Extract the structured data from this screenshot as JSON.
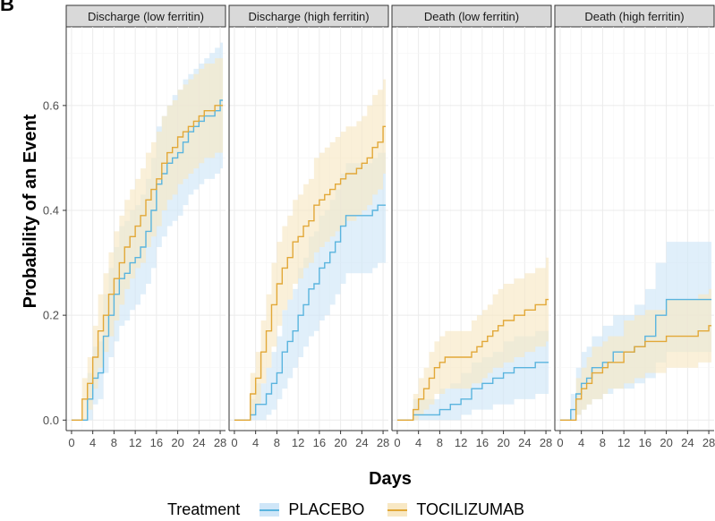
{
  "panel_letter": "B",
  "legend": {
    "title": "Treatment",
    "items": [
      {
        "label": "PLACEBO",
        "color": "#5ab4de",
        "fill": "#cfe6f8"
      },
      {
        "label": "TOCILIZUMAB",
        "color": "#e2a838",
        "fill": "#f8e8c4"
      }
    ]
  },
  "chart_data": {
    "type": "line",
    "subtype": "step-cumulative-incidence",
    "xlabel": "Days",
    "ylabel": "Probability of an Event",
    "xlim": [
      -1,
      29
    ],
    "ylim": [
      -0.02,
      0.75
    ],
    "xticks": [
      0,
      4,
      8,
      12,
      16,
      20,
      24,
      28
    ],
    "yticks": [
      0.0,
      0.2,
      0.4,
      0.6
    ],
    "ytick_labels": [
      "0.0",
      "0.2",
      "0.4",
      "0.6"
    ],
    "grid": true,
    "legend_position": "bottom",
    "panels": [
      {
        "title": "Discharge (low ferritin)",
        "series": [
          {
            "name": "PLACEBO",
            "x": [
              0,
              3,
              4,
              5,
              6,
              7,
              8,
              9,
              10,
              11,
              12,
              13,
              14,
              15,
              16,
              17,
              18,
              19,
              20,
              21,
              22,
              23,
              24,
              25,
              26,
              27,
              28
            ],
            "y": [
              0,
              0.04,
              0.08,
              0.09,
              0.16,
              0.2,
              0.24,
              0.27,
              0.28,
              0.3,
              0.31,
              0.33,
              0.36,
              0.4,
              0.45,
              0.47,
              0.49,
              0.5,
              0.51,
              0.53,
              0.55,
              0.56,
              0.57,
              0.58,
              0.58,
              0.59,
              0.61
            ],
            "lower": [
              0,
              0,
              0.03,
              0.04,
              0.09,
              0.12,
              0.15,
              0.18,
              0.19,
              0.21,
              0.22,
              0.24,
              0.26,
              0.29,
              0.33,
              0.35,
              0.37,
              0.38,
              0.39,
              0.41,
              0.43,
              0.44,
              0.45,
              0.46,
              0.46,
              0.47,
              0.48
            ],
            "upper": [
              0,
              0.09,
              0.14,
              0.15,
              0.24,
              0.29,
              0.33,
              0.37,
              0.38,
              0.4,
              0.41,
              0.43,
              0.46,
              0.5,
              0.56,
              0.58,
              0.6,
              0.62,
              0.63,
              0.65,
              0.66,
              0.67,
              0.68,
              0.69,
              0.7,
              0.71,
              0.72
            ]
          },
          {
            "name": "TOCILIZUMAB",
            "x": [
              0,
              2,
              3,
              4,
              5,
              6,
              7,
              8,
              9,
              10,
              11,
              12,
              13,
              14,
              15,
              16,
              17,
              18,
              19,
              20,
              21,
              22,
              23,
              24,
              25,
              26,
              27,
              28
            ],
            "y": [
              0,
              0.04,
              0.07,
              0.12,
              0.17,
              0.2,
              0.24,
              0.27,
              0.3,
              0.33,
              0.35,
              0.37,
              0.39,
              0.42,
              0.44,
              0.46,
              0.49,
              0.51,
              0.52,
              0.54,
              0.55,
              0.56,
              0.57,
              0.58,
              0.59,
              0.59,
              0.6,
              0.6
            ],
            "lower": [
              0,
              0,
              0.02,
              0.06,
              0.1,
              0.13,
              0.16,
              0.19,
              0.22,
              0.25,
              0.27,
              0.29,
              0.3,
              0.33,
              0.35,
              0.37,
              0.4,
              0.42,
              0.43,
              0.45,
              0.46,
              0.47,
              0.48,
              0.49,
              0.5,
              0.5,
              0.51,
              0.51
            ],
            "upper": [
              0,
              0.08,
              0.12,
              0.18,
              0.24,
              0.28,
              0.32,
              0.36,
              0.39,
              0.42,
              0.44,
              0.46,
              0.48,
              0.51,
              0.53,
              0.55,
              0.58,
              0.6,
              0.61,
              0.63,
              0.64,
              0.65,
              0.66,
              0.67,
              0.68,
              0.68,
              0.69,
              0.69
            ]
          }
        ]
      },
      {
        "title": "Discharge (high ferritin)",
        "series": [
          {
            "name": "PLACEBO",
            "x": [
              0,
              3,
              4,
              5,
              6,
              7,
              8,
              9,
              10,
              11,
              12,
              13,
              14,
              15,
              16,
              17,
              18,
              19,
              20,
              21,
              22,
              23,
              24,
              25,
              26,
              27,
              28
            ],
            "y": [
              0,
              0.01,
              0.03,
              0.03,
              0.05,
              0.07,
              0.09,
              0.13,
              0.15,
              0.17,
              0.2,
              0.22,
              0.25,
              0.26,
              0.29,
              0.3,
              0.32,
              0.34,
              0.37,
              0.39,
              0.39,
              0.39,
              0.39,
              0.39,
              0.4,
              0.41,
              0.41
            ],
            "lower": [
              0,
              0,
              0,
              0,
              0.01,
              0.02,
              0.04,
              0.06,
              0.08,
              0.1,
              0.12,
              0.14,
              0.16,
              0.17,
              0.19,
              0.2,
              0.22,
              0.24,
              0.26,
              0.28,
              0.28,
              0.28,
              0.28,
              0.28,
              0.29,
              0.3,
              0.3
            ],
            "upper": [
              0,
              0.04,
              0.07,
              0.07,
              0.1,
              0.13,
              0.16,
              0.21,
              0.23,
              0.25,
              0.29,
              0.31,
              0.35,
              0.36,
              0.39,
              0.4,
              0.42,
              0.44,
              0.47,
              0.49,
              0.49,
              0.49,
              0.49,
              0.49,
              0.5,
              0.51,
              0.51
            ]
          },
          {
            "name": "TOCILIZUMAB",
            "x": [
              0,
              3,
              4,
              5,
              6,
              7,
              8,
              9,
              10,
              11,
              12,
              13,
              14,
              15,
              16,
              17,
              18,
              19,
              20,
              21,
              22,
              23,
              24,
              25,
              26,
              27,
              28
            ],
            "y": [
              0,
              0.05,
              0.08,
              0.13,
              0.17,
              0.22,
              0.26,
              0.29,
              0.31,
              0.34,
              0.35,
              0.37,
              0.38,
              0.41,
              0.42,
              0.43,
              0.44,
              0.45,
              0.46,
              0.47,
              0.47,
              0.48,
              0.49,
              0.5,
              0.52,
              0.53,
              0.56
            ],
            "lower": [
              0,
              0.01,
              0.03,
              0.07,
              0.1,
              0.14,
              0.18,
              0.21,
              0.23,
              0.26,
              0.27,
              0.29,
              0.3,
              0.32,
              0.33,
              0.34,
              0.35,
              0.36,
              0.37,
              0.38,
              0.38,
              0.39,
              0.4,
              0.41,
              0.43,
              0.44,
              0.47
            ],
            "upper": [
              0,
              0.09,
              0.13,
              0.19,
              0.24,
              0.3,
              0.34,
              0.37,
              0.39,
              0.42,
              0.43,
              0.45,
              0.46,
              0.5,
              0.51,
              0.52,
              0.53,
              0.54,
              0.55,
              0.56,
              0.56,
              0.57,
              0.58,
              0.6,
              0.62,
              0.63,
              0.65
            ]
          }
        ]
      },
      {
        "title": "Death (low ferritin)",
        "series": [
          {
            "name": "PLACEBO",
            "x": [
              0,
              3,
              4,
              6,
              8,
              10,
              12,
              14,
              16,
              18,
              20,
              22,
              24,
              26,
              28
            ],
            "y": [
              0,
              0.01,
              0.01,
              0.01,
              0.02,
              0.03,
              0.04,
              0.06,
              0.07,
              0.08,
              0.09,
              0.1,
              0.1,
              0.11,
              0.11
            ],
            "lower": [
              0,
              0,
              0,
              0,
              0,
              0,
              0.01,
              0.02,
              0.02,
              0.03,
              0.03,
              0.04,
              0.04,
              0.05,
              0.05
            ],
            "upper": [
              0,
              0.04,
              0.04,
              0.04,
              0.06,
              0.07,
              0.09,
              0.11,
              0.12,
              0.13,
              0.15,
              0.16,
              0.16,
              0.17,
              0.17
            ]
          },
          {
            "name": "TOCILIZUMAB",
            "x": [
              0,
              3,
              4,
              5,
              6,
              7,
              8,
              9,
              10,
              12,
              14,
              15,
              16,
              17,
              18,
              19,
              20,
              22,
              24,
              26,
              27,
              28
            ],
            "y": [
              0,
              0.02,
              0.04,
              0.06,
              0.08,
              0.1,
              0.11,
              0.12,
              0.12,
              0.12,
              0.13,
              0.14,
              0.15,
              0.16,
              0.17,
              0.18,
              0.19,
              0.2,
              0.21,
              0.22,
              0.22,
              0.23
            ],
            "lower": [
              0,
              0,
              0.01,
              0.02,
              0.03,
              0.05,
              0.05,
              0.06,
              0.06,
              0.06,
              0.07,
              0.07,
              0.08,
              0.09,
              0.1,
              0.1,
              0.11,
              0.12,
              0.13,
              0.14,
              0.14,
              0.15
            ],
            "upper": [
              0,
              0.05,
              0.08,
              0.1,
              0.13,
              0.15,
              0.16,
              0.17,
              0.17,
              0.17,
              0.19,
              0.2,
              0.21,
              0.22,
              0.24,
              0.25,
              0.26,
              0.27,
              0.28,
              0.29,
              0.29,
              0.31
            ]
          }
        ]
      },
      {
        "title": "Death (high ferritin)",
        "series": [
          {
            "name": "PLACEBO",
            "x": [
              0,
              2,
              3,
              4,
              5,
              6,
              7,
              8,
              10,
              12,
              14,
              16,
              18,
              19,
              20,
              24,
              28
            ],
            "y": [
              0,
              0.02,
              0.05,
              0.07,
              0.08,
              0.1,
              0.1,
              0.11,
              0.13,
              0.13,
              0.14,
              0.16,
              0.2,
              0.2,
              0.23,
              0.23,
              0.23
            ],
            "lower": [
              0,
              0,
              0.01,
              0.02,
              0.03,
              0.04,
              0.04,
              0.05,
              0.06,
              0.06,
              0.07,
              0.08,
              0.11,
              0.11,
              0.13,
              0.13,
              0.13
            ],
            "upper": [
              0,
              0.05,
              0.1,
              0.13,
              0.14,
              0.16,
              0.16,
              0.18,
              0.2,
              0.2,
              0.22,
              0.25,
              0.3,
              0.3,
              0.34,
              0.34,
              0.34
            ]
          },
          {
            "name": "TOCILIZUMAB",
            "x": [
              0,
              2,
              3,
              4,
              5,
              6,
              7,
              8,
              9,
              10,
              12,
              14,
              16,
              18,
              20,
              24,
              26,
              28
            ],
            "y": [
              0,
              0,
              0.04,
              0.06,
              0.07,
              0.09,
              0.09,
              0.1,
              0.11,
              0.11,
              0.13,
              0.14,
              0.15,
              0.15,
              0.16,
              0.16,
              0.17,
              0.18
            ],
            "lower": [
              0,
              0,
              0.01,
              0.02,
              0.03,
              0.04,
              0.04,
              0.05,
              0.06,
              0.06,
              0.07,
              0.08,
              0.09,
              0.09,
              0.1,
              0.1,
              0.11,
              0.11
            ],
            "upper": [
              0,
              0,
              0.08,
              0.1,
              0.12,
              0.14,
              0.14,
              0.15,
              0.16,
              0.16,
              0.19,
              0.2,
              0.21,
              0.21,
              0.23,
              0.23,
              0.24,
              0.25
            ]
          }
        ]
      }
    ]
  }
}
